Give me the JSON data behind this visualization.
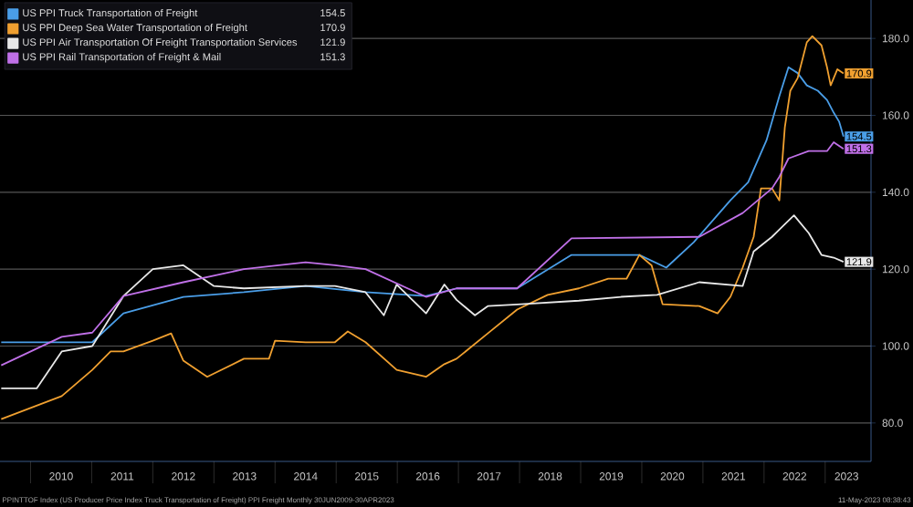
{
  "chart_data": {
    "type": "line",
    "xlim": [
      2009.5,
      2023.75
    ],
    "xticks": [
      {
        "value": 2010,
        "label": null
      },
      {
        "value": 2010.5,
        "label": "2010"
      },
      {
        "value": 2011,
        "label": null
      },
      {
        "value": 2011.5,
        "label": "2011"
      },
      {
        "value": 2012,
        "label": null
      },
      {
        "value": 2012.5,
        "label": "2012"
      },
      {
        "value": 2013,
        "label": null
      },
      {
        "value": 2013.5,
        "label": "2013"
      },
      {
        "value": 2014,
        "label": null
      },
      {
        "value": 2014.5,
        "label": "2014"
      },
      {
        "value": 2015,
        "label": null
      },
      {
        "value": 2015.5,
        "label": "2015"
      },
      {
        "value": 2016,
        "label": null
      },
      {
        "value": 2016.5,
        "label": "2016"
      },
      {
        "value": 2017,
        "label": null
      },
      {
        "value": 2017.5,
        "label": "2017"
      },
      {
        "value": 2018,
        "label": null
      },
      {
        "value": 2018.5,
        "label": "2018"
      },
      {
        "value": 2019,
        "label": null
      },
      {
        "value": 2019.5,
        "label": "2019"
      },
      {
        "value": 2020,
        "label": null
      },
      {
        "value": 2020.5,
        "label": "2020"
      },
      {
        "value": 2021,
        "label": null
      },
      {
        "value": 2021.5,
        "label": "2021"
      },
      {
        "value": 2022,
        "label": null
      },
      {
        "value": 2022.5,
        "label": "2022"
      },
      {
        "value": 2023,
        "label": null
      },
      {
        "value": 2023.35,
        "label": "2023"
      }
    ],
    "ylim": [
      70,
      190
    ],
    "yticks": [
      {
        "value": 80,
        "label": "80.0"
      },
      {
        "value": 100,
        "label": "100.0"
      },
      {
        "value": 120,
        "label": "120.0"
      },
      {
        "value": 140,
        "label": "140.0"
      },
      {
        "value": 160,
        "label": "160.0"
      },
      {
        "value": 180,
        "label": "180.0"
      }
    ],
    "grid": "y",
    "legend": "top left",
    "marker": "none",
    "line_style": "solid",
    "series": [
      {
        "name": "US PPI Truck Transportation of Freight",
        "color": "#4a9ee8",
        "x": [
          2009.52,
          2010.5,
          2011.01,
          2011.52,
          2012.5,
          2013.49,
          2014.5,
          2015.48,
          2016.47,
          2016.97,
          2017.96,
          2018.85,
          2019.96,
          2020.4,
          2020.85,
          2021.45,
          2021.74,
          2022.04,
          2022.25,
          2022.4,
          2022.55,
          2022.7,
          2022.88,
          2023.03,
          2023.14,
          2023.23,
          2023.3
        ],
        "values": [
          101,
          101,
          101,
          108.5,
          112.8,
          114,
          115.6,
          114,
          113,
          115,
          115,
          123.7,
          123.7,
          120.4,
          127,
          137.9,
          142.6,
          153.5,
          165,
          172.5,
          171,
          167.8,
          166.4,
          164,
          160.7,
          158.3,
          154.5
        ],
        "value_labels": [
          null,
          null,
          null,
          null,
          null,
          null,
          null,
          null,
          null,
          null,
          null,
          null,
          null,
          null,
          null,
          null,
          null,
          null,
          null,
          null,
          null,
          null,
          null,
          null,
          null,
          null,
          "154.5"
        ]
      },
      {
        "name": "US PPI Deep Sea Water Transportation of Freight",
        "color": "#f0a030",
        "x": [
          2009.52,
          2010.51,
          2011.01,
          2011.31,
          2011.52,
          2012.0,
          2012.3,
          2012.5,
          2012.89,
          2013.49,
          2013.9,
          2014.0,
          2014.5,
          2014.98,
          2015.19,
          2015.48,
          2015.99,
          2016.47,
          2016.77,
          2016.97,
          2017.48,
          2017.96,
          2018.46,
          2018.97,
          2019.45,
          2019.75,
          2019.96,
          2020.16,
          2020.34,
          2020.94,
          2021.24,
          2021.45,
          2021.65,
          2021.83,
          2021.95,
          2022.13,
          2022.25,
          2022.34,
          2022.43,
          2022.55,
          2022.7,
          2022.79,
          2022.94,
          2023.03,
          2023.09,
          2023.2,
          2023.3
        ],
        "values": [
          81,
          87,
          93.8,
          98.6,
          98.6,
          101.4,
          103.3,
          96.2,
          92,
          96.7,
          96.7,
          101.4,
          101,
          101,
          103.8,
          101,
          93.8,
          92,
          95.3,
          96.7,
          103.3,
          109.5,
          113.3,
          115,
          117.5,
          117.5,
          123.7,
          121,
          110.9,
          110.4,
          108.5,
          112.8,
          120.4,
          128.4,
          141,
          141,
          137.9,
          156.9,
          166.4,
          169.7,
          179,
          180.6,
          178.2,
          172.5,
          167.8,
          172,
          170.9
        ],
        "value_labels": [
          null,
          null,
          null,
          null,
          null,
          null,
          null,
          null,
          null,
          null,
          null,
          null,
          null,
          null,
          null,
          null,
          null,
          null,
          null,
          null,
          null,
          null,
          null,
          null,
          null,
          null,
          null,
          null,
          null,
          null,
          null,
          null,
          null,
          null,
          null,
          null,
          null,
          null,
          null,
          null,
          null,
          null,
          null,
          null,
          null,
          null,
          "170.9"
        ]
      },
      {
        "name": "US PPI Air Transportation Of Freight Transportation Services",
        "color": "#e8e8e8",
        "x": [
          2009.52,
          2010.1,
          2010.51,
          2011.01,
          2011.52,
          2012.0,
          2012.5,
          2013.0,
          2013.49,
          2014.5,
          2014.98,
          2015.48,
          2015.78,
          2015.99,
          2016.47,
          2016.77,
          2016.97,
          2017.27,
          2017.48,
          2017.96,
          2018.97,
          2019.66,
          2020.25,
          2020.94,
          2021.65,
          2021.83,
          2022.13,
          2022.34,
          2022.49,
          2022.73,
          2022.94,
          2023.14,
          2023.3
        ],
        "values": [
          89,
          89,
          98.6,
          100,
          113,
          120,
          121,
          115.6,
          115,
          115.6,
          115.6,
          114,
          108,
          116,
          108.5,
          116,
          112,
          108,
          110.4,
          110.8,
          111.8,
          112.8,
          113.3,
          116.6,
          115.6,
          124.6,
          128.4,
          131.7,
          134,
          129.4,
          123.7,
          123,
          121.9
        ],
        "value_labels": [
          null,
          null,
          null,
          null,
          null,
          null,
          null,
          null,
          null,
          null,
          null,
          null,
          null,
          null,
          null,
          null,
          null,
          null,
          null,
          null,
          null,
          null,
          null,
          null,
          null,
          null,
          null,
          null,
          null,
          null,
          null,
          null,
          "121.9"
        ]
      },
      {
        "name": "US PPI Rail Transportation of Freight & Mail",
        "color": "#c070e8",
        "x": [
          2009.52,
          2010.51,
          2011.01,
          2011.52,
          2012.5,
          2013.49,
          2014.5,
          2014.98,
          2015.48,
          2016.47,
          2016.97,
          2017.96,
          2018.85,
          2020.94,
          2021.65,
          2022.13,
          2022.25,
          2022.4,
          2022.73,
          2023.03,
          2023.14,
          2023.3
        ],
        "values": [
          95,
          102.4,
          103.5,
          113,
          116.6,
          120,
          121.8,
          121,
          120,
          112.8,
          115,
          115,
          128,
          128.4,
          134.6,
          141,
          144,
          148.8,
          150.7,
          150.7,
          153,
          151.3
        ],
        "value_labels": [
          null,
          null,
          null,
          null,
          null,
          null,
          null,
          null,
          null,
          null,
          null,
          null,
          null,
          null,
          null,
          null,
          null,
          null,
          null,
          null,
          null,
          "151.3"
        ]
      }
    ],
    "annotations": [
      "PPINTTOF Index (US Producer Price Index Truck Transportation of Freight) PPI Freight  Monthly 30JUN2009-30APR2023",
      "11-May-2023 08:38:43"
    ]
  }
}
